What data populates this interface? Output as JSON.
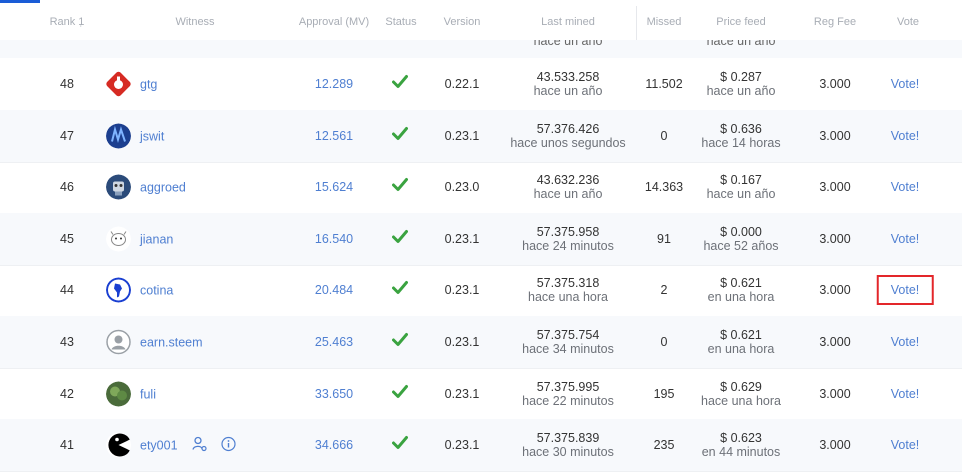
{
  "headers": {
    "rank": "Rank 1̣",
    "witness": "Witness",
    "approval": "Approval (MV)",
    "status": "Status",
    "version": "Version",
    "last_mined": "Last mined",
    "missed": "Missed",
    "price_feed": "Price feed",
    "reg_fee": "Reg Fee",
    "vote": "Vote"
  },
  "partial_row": {
    "last_mined_sub": "hace un año",
    "price_sub": "hace un año"
  },
  "rows": [
    {
      "rank": "48",
      "witness": "gtg",
      "avatar_icon": "red-gtg-logo-icon",
      "approval": "12.289",
      "version": "0.22.1",
      "last_mined": "43.533.258",
      "last_mined_ago": "hace un año",
      "missed": "11.502",
      "price": "$ 0.287",
      "price_ago": "hace un año",
      "reg_fee": "3.000",
      "vote": "Vote!"
    },
    {
      "rank": "47",
      "witness": "jswit",
      "avatar_icon": "blue-jswit-logo-icon",
      "approval": "12.561",
      "version": "0.23.1",
      "last_mined": "57.376.426",
      "last_mined_ago": "hace unos segundos",
      "missed": "0",
      "price": "$ 0.636",
      "price_ago": "hace 14 horas",
      "reg_fee": "3.000",
      "vote": "Vote!"
    },
    {
      "rank": "46",
      "witness": "aggroed",
      "avatar_icon": "robot-avatar-icon",
      "approval": "15.624",
      "version": "0.23.0",
      "last_mined": "43.632.236",
      "last_mined_ago": "hace un año",
      "missed": "14.363",
      "price": "$ 0.167",
      "price_ago": "hace un año",
      "reg_fee": "3.000",
      "vote": "Vote!"
    },
    {
      "rank": "45",
      "witness": "jianan",
      "avatar_icon": "cartoon-avatar-icon",
      "approval": "16.540",
      "version": "0.23.1",
      "last_mined": "57.375.958",
      "last_mined_ago": "hace 24 minutos",
      "missed": "91",
      "price": "$ 0.000",
      "price_ago": "hace 52 años",
      "reg_fee": "3.000",
      "vote": "Vote!"
    },
    {
      "rank": "44",
      "witness": "cotina",
      "avatar_icon": "latin-america-globe-icon",
      "approval": "20.484",
      "version": "0.23.1",
      "last_mined": "57.375.318",
      "last_mined_ago": "hace una hora",
      "missed": "2",
      "price": "$ 0.621",
      "price_ago": "en una hora",
      "reg_fee": "3.000",
      "vote": "Vote!",
      "highlighted": true
    },
    {
      "rank": "43",
      "witness": "earn.steem",
      "avatar_icon": "default-user-icon",
      "approval": "25.463",
      "version": "0.23.1",
      "last_mined": "57.375.754",
      "last_mined_ago": "hace 34 minutos",
      "missed": "0",
      "price": "$ 0.621",
      "price_ago": "en una hora",
      "reg_fee": "3.000",
      "vote": "Vote!"
    },
    {
      "rank": "42",
      "witness": "fuli",
      "avatar_icon": "plant-avatar-icon",
      "approval": "33.650",
      "version": "0.23.1",
      "last_mined": "57.375.995",
      "last_mined_ago": "hace 22 minutos",
      "missed": "195",
      "price": "$ 0.629",
      "price_ago": "hace una hora",
      "reg_fee": "3.000",
      "vote": "Vote!"
    },
    {
      "rank": "41",
      "witness": "ety001",
      "avatar_icon": "pacman-avatar-icon",
      "approval": "34.666",
      "version": "0.23.1",
      "last_mined": "57.375.839",
      "last_mined_ago": "hace 30 minutos",
      "missed": "235",
      "price": "$ 0.623",
      "price_ago": "en 44 minutos",
      "reg_fee": "3.000",
      "vote": "Vote!",
      "extra_icons": [
        "user-network-icon",
        "info-icon"
      ]
    }
  ],
  "colors": {
    "link": "#4f7fd1",
    "check": "#3aa340",
    "highlight": "#e3262a",
    "alt_row": "#f7f9fc"
  }
}
